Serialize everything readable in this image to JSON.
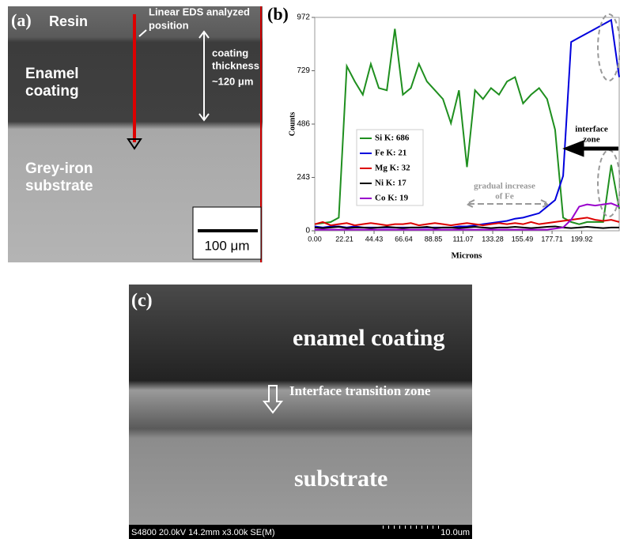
{
  "panels": {
    "a": {
      "label": "(a)",
      "resin": "Resin",
      "probe": [
        "Linear EDS analyzed",
        "position"
      ],
      "thickness": [
        "coating",
        "thickness",
        "~120 μm"
      ],
      "coating": [
        "Enamel",
        "coating"
      ],
      "substrate": [
        "Grey-iron",
        "substrate"
      ],
      "scale": "100 μm"
    },
    "c": {
      "label": "(c)",
      "coating": "enamel coating",
      "interface": "Interface transition zone",
      "substrate": "substrate",
      "info": "S4800 20.0kV 14.2mm x3.00k SE(M)",
      "scale": "10.0um"
    }
  },
  "chart_data": {
    "type": "line",
    "panel_label": "(b)",
    "x_label": "Microns",
    "y_label": "Counts",
    "x": [
      0,
      6,
      12,
      18,
      24,
      30,
      36,
      42,
      48,
      54,
      60,
      66,
      72,
      78,
      84,
      90,
      96,
      102,
      108,
      114,
      120,
      126,
      132,
      138,
      144,
      150,
      156,
      162,
      168,
      174,
      180,
      186,
      192,
      198,
      204,
      210,
      216,
      222,
      228
    ],
    "series": [
      {
        "name": "Si K: 686",
        "color": "#1f8f1f",
        "values": [
          30,
          35,
          40,
          60,
          750,
          680,
          620,
          760,
          650,
          640,
          920,
          620,
          650,
          760,
          680,
          640,
          600,
          490,
          640,
          290,
          640,
          600,
          650,
          620,
          680,
          700,
          580,
          620,
          650,
          600,
          460,
          60,
          40,
          30,
          40,
          40,
          40,
          300,
          100
        ]
      },
      {
        "name": "Fe K: 21",
        "color": "#0000dd",
        "values": [
          20,
          15,
          20,
          20,
          15,
          20,
          15,
          15,
          15,
          15,
          15,
          15,
          15,
          15,
          15,
          15,
          15,
          15,
          20,
          20,
          25,
          30,
          35,
          40,
          45,
          55,
          60,
          70,
          80,
          110,
          140,
          250,
          860,
          880,
          900,
          920,
          940,
          960,
          700
        ]
      },
      {
        "name": "Mg K: 32",
        "color": "#dd0000",
        "values": [
          30,
          40,
          25,
          30,
          35,
          25,
          30,
          35,
          30,
          25,
          30,
          30,
          35,
          25,
          30,
          35,
          30,
          25,
          30,
          35,
          30,
          25,
          30,
          35,
          30,
          35,
          30,
          40,
          30,
          35,
          40,
          45,
          50,
          55,
          60,
          50,
          45,
          50,
          40
        ]
      },
      {
        "name": "Ni K: 17",
        "color": "#000000",
        "values": [
          15,
          12,
          15,
          18,
          12,
          15,
          15,
          12,
          15,
          18,
          15,
          12,
          15,
          15,
          18,
          12,
          15,
          15,
          12,
          15,
          18,
          15,
          12,
          15,
          15,
          18,
          15,
          12,
          15,
          18,
          20,
          15,
          12,
          15,
          18,
          15,
          12,
          15,
          15
        ]
      },
      {
        "name": "Co K: 19",
        "color": "#9900cc",
        "values": [
          5,
          5,
          5,
          5,
          5,
          5,
          5,
          5,
          5,
          5,
          5,
          5,
          5,
          5,
          5,
          5,
          5,
          5,
          5,
          5,
          5,
          5,
          5,
          5,
          5,
          5,
          5,
          5,
          5,
          5,
          10,
          15,
          50,
          110,
          120,
          115,
          120,
          125,
          110
        ]
      }
    ],
    "xlim": [
      0,
      228
    ],
    "ylim": [
      0,
      972
    ],
    "xticks": [
      {
        "value": 0,
        "label": "0.00"
      },
      22.21,
      44.43,
      66.64,
      88.85,
      111.07,
      133.28,
      155.49,
      177.71,
      199.92
    ],
    "yticks": [
      0,
      243,
      486,
      729,
      972
    ],
    "annotations": [
      "interface",
      "zone",
      "gradual increase",
      "of Fe"
    ]
  }
}
